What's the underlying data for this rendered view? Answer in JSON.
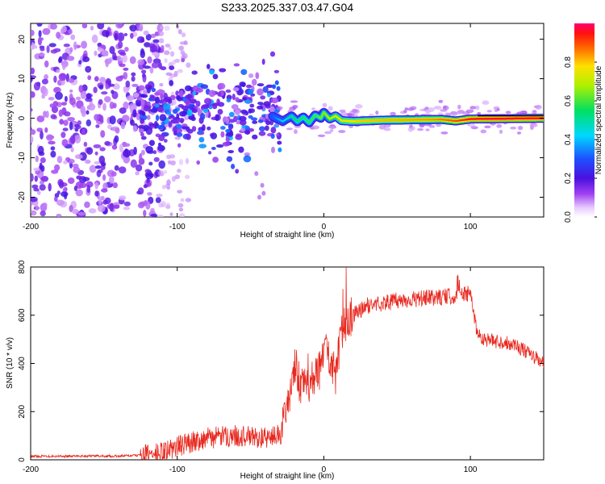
{
  "title": "S233.2025.337.03.47.G04",
  "chart_data": [
    {
      "type": "heatmap",
      "xlabel": "Height of straight line (km)",
      "ylabel": "Frequency (Hz)",
      "xlim": [
        -200,
        150
      ],
      "ylim": [
        -25,
        24
      ],
      "xticks": [
        -200,
        -100,
        0,
        100
      ],
      "xtick_labels": [
        "-200",
        "-100",
        "0",
        "100"
      ],
      "yticks": [
        -20,
        -10,
        0,
        10,
        20
      ],
      "ytick_labels": [
        "-20",
        "-10",
        "0",
        "10",
        "20"
      ],
      "colorbar": {
        "label": "Normalized spectral amplitude",
        "range": [
          0.0,
          1.0
        ],
        "ticks": [
          0.0,
          0.2,
          0.4,
          0.6,
          0.8
        ],
        "tick_labels": [
          "0.0",
          "0.2",
          "0.4",
          "0.6",
          "0.8"
        ]
      },
      "features": {
        "noise_region_km": [
          -200,
          -120
        ],
        "scatter_region_km": [
          -125,
          -30
        ],
        "ridge": {
          "from_km": -35,
          "to_km": 150,
          "freq_hz": [
            [
              -35,
              0.5
            ],
            [
              -28,
              -0.8
            ],
            [
              -22,
              0.6
            ],
            [
              -18,
              -0.9
            ],
            [
              -14,
              0.3
            ],
            [
              -10,
              -1.2
            ],
            [
              -6,
              0.8
            ],
            [
              -2,
              0.0
            ],
            [
              0,
              1.5
            ],
            [
              4,
              -0.2
            ],
            [
              8,
              0.6
            ],
            [
              12,
              -0.6
            ],
            [
              20,
              -0.8
            ],
            [
              40,
              -0.5
            ],
            [
              60,
              -0.4
            ],
            [
              80,
              -0.3
            ],
            [
              90,
              -0.7
            ],
            [
              100,
              -0.2
            ],
            [
              150,
              0.0
            ]
          ],
          "amplitude": [
            [
              -35,
              0.3
            ],
            [
              -20,
              0.55
            ],
            [
              -5,
              0.6
            ],
            [
              10,
              0.75
            ],
            [
              25,
              0.8
            ],
            [
              50,
              0.82
            ],
            [
              75,
              0.84
            ],
            [
              90,
              0.9
            ],
            [
              100,
              0.95
            ],
            [
              120,
              0.97
            ],
            [
              150,
              0.95
            ]
          ]
        }
      }
    },
    {
      "type": "line",
      "xlabel": "Height of straight line (km)",
      "ylabel": "SNR (10 * v/v)",
      "xlim": [
        -200,
        150
      ],
      "ylim": [
        0,
        800
      ],
      "xticks": [
        -200,
        -100,
        0,
        100
      ],
      "xtick_labels": [
        "-200",
        "-100",
        "0",
        "100"
      ],
      "yticks": [
        0,
        200,
        400,
        600,
        800
      ],
      "ytick_labels": [
        "0",
        "200",
        "400",
        "600",
        "800"
      ],
      "series": [
        {
          "name": "SNR",
          "color": "#e8281e",
          "x": [
            -200,
            -180,
            -160,
            -140,
            -120,
            -110,
            -100,
            -90,
            -80,
            -70,
            -60,
            -50,
            -40,
            -32,
            -26,
            -22,
            -19,
            -16,
            -12,
            -8,
            -5,
            -2,
            0,
            4,
            8,
            12,
            16,
            20,
            25,
            30,
            40,
            50,
            60,
            70,
            80,
            90,
            95,
            100,
            105,
            110,
            120,
            130,
            140,
            150
          ],
          "y": [
            15,
            15,
            16,
            15,
            20,
            30,
            55,
            75,
            90,
            95,
            100,
            95,
            90,
            100,
            180,
            300,
            400,
            290,
            300,
            340,
            350,
            380,
            460,
            440,
            340,
            520,
            580,
            600,
            620,
            640,
            650,
            660,
            665,
            670,
            675,
            680,
            690,
            685,
            520,
            500,
            490,
            480,
            440,
            400
          ]
        }
      ]
    }
  ]
}
